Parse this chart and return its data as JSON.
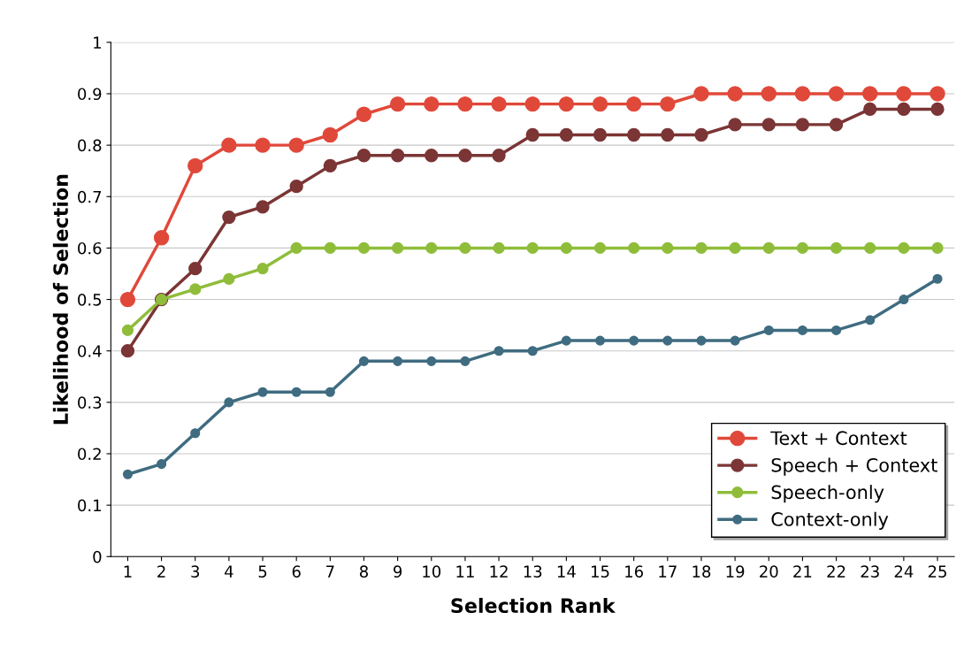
{
  "chart_data": {
    "type": "line",
    "xlabel": "Selection Rank",
    "ylabel": "Likelihood of Selection",
    "categories": [
      "1",
      "2",
      "3",
      "4",
      "5",
      "6",
      "7",
      "8",
      "9",
      "10",
      "11",
      "12",
      "13",
      "14",
      "15",
      "16",
      "17",
      "18",
      "19",
      "20",
      "21",
      "22",
      "23",
      "24",
      "25"
    ],
    "series": [
      {
        "name": "Text + Context",
        "color": "#e0493a",
        "values": [
          0.5,
          0.62,
          0.76,
          0.8,
          0.8,
          0.8,
          0.82,
          0.86,
          0.88,
          0.88,
          0.88,
          0.88,
          0.88,
          0.88,
          0.88,
          0.88,
          0.88,
          0.9,
          0.9,
          0.9,
          0.9,
          0.9,
          0.9,
          0.9,
          0.9
        ]
      },
      {
        "name": "Speech + Context",
        "color": "#7b3535",
        "values": [
          0.4,
          0.5,
          0.56,
          0.66,
          0.68,
          0.72,
          0.76,
          0.78,
          0.78,
          0.78,
          0.78,
          0.78,
          0.82,
          0.82,
          0.82,
          0.82,
          0.82,
          0.82,
          0.84,
          0.84,
          0.84,
          0.84,
          0.87,
          0.87,
          0.87
        ]
      },
      {
        "name": "Speech-only",
        "color": "#8fbd3a",
        "values": [
          0.44,
          0.5,
          0.52,
          0.54,
          0.56,
          0.6,
          0.6,
          0.6,
          0.6,
          0.6,
          0.6,
          0.6,
          0.6,
          0.6,
          0.6,
          0.6,
          0.6,
          0.6,
          0.6,
          0.6,
          0.6,
          0.6,
          0.6,
          0.6,
          0.6
        ]
      },
      {
        "name": "Context-only",
        "color": "#3f6c80",
        "values": [
          0.16,
          0.18,
          0.24,
          0.3,
          0.32,
          0.32,
          0.32,
          0.38,
          0.38,
          0.38,
          0.38,
          0.4,
          0.4,
          0.42,
          0.42,
          0.42,
          0.42,
          0.42,
          0.42,
          0.44,
          0.44,
          0.44,
          0.46,
          0.5,
          0.54
        ]
      }
    ],
    "ylim": [
      0,
      1
    ],
    "yticks": [
      0,
      0.1,
      0.2,
      0.3,
      0.4,
      0.5,
      0.6,
      0.7,
      0.8,
      0.9,
      1
    ],
    "grid": "y",
    "legend": "lower right",
    "marker": "circle",
    "line_style": "solid"
  }
}
